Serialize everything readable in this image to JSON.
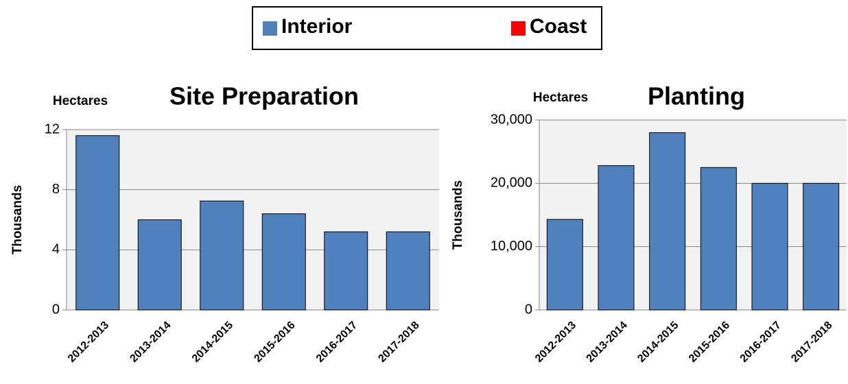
{
  "chart_data": [
    {
      "type": "bar",
      "title": "Site Preparation",
      "unit_label": "Hectares",
      "y_label": "Thousands",
      "categories": [
        "2012-2013",
        "2013-2014",
        "2014-2015",
        "2015-2016",
        "2016-2017",
        "2017-2018"
      ],
      "series": [
        {
          "name": "Interior",
          "color": "#4f81bd",
          "values": [
            11.6,
            6.0,
            7.25,
            6.4,
            5.2,
            5.2
          ]
        },
        {
          "name": "Coast",
          "color": "#ff0000",
          "values": [
            0,
            0,
            0,
            0,
            0,
            0
          ]
        }
      ],
      "ylim": [
        0,
        12
      ],
      "yticks": [
        0,
        4,
        8,
        12
      ],
      "grid": true,
      "stacked": true
    },
    {
      "type": "bar",
      "title": "Planting",
      "unit_label": "Hectares",
      "y_label": "Thousands",
      "categories": [
        "2012-2013",
        "2013-2014",
        "2014-2015",
        "2015-2016",
        "2016-2017",
        "2017-2018"
      ],
      "series": [
        {
          "name": "Interior",
          "color": "#4f81bd",
          "values": [
            14300,
            22800,
            28000,
            22500,
            20000,
            20000
          ]
        },
        {
          "name": "Coast",
          "color": "#ff0000",
          "values": [
            0,
            0,
            0,
            0,
            0,
            0
          ]
        }
      ],
      "ylim": [
        0,
        30000
      ],
      "yticks": [
        0,
        {
          "value": 10000,
          "label": "10,000"
        },
        {
          "value": 20000,
          "label": "20,000"
        },
        {
          "value": 30000,
          "label": "30,000"
        }
      ],
      "grid": true,
      "stacked": true
    }
  ]
}
